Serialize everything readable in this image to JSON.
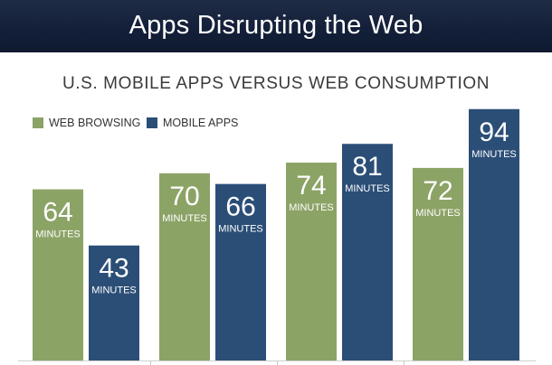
{
  "banner": {
    "title": "Apps Disrupting the Web"
  },
  "legend": [
    {
      "label": "WEB BROWSING",
      "color": "#8ca366"
    },
    {
      "label": "MOBILE APPS",
      "color": "#2b4e77"
    }
  ],
  "chart_data": {
    "type": "bar",
    "title": "U.S. MOBILE APPS VERSUS WEB CONSUMPTION",
    "xlabel": "",
    "ylabel": "",
    "categories": [
      "",
      "",
      "",
      ""
    ],
    "unit_label": "MINUTES",
    "ylim": [
      0,
      100
    ],
    "grid": false,
    "legend_position": "top-left",
    "series": [
      {
        "name": "WEB BROWSING",
        "color": "#8ca366",
        "values": [
          64,
          70,
          74,
          72
        ]
      },
      {
        "name": "MOBILE APPS",
        "color": "#2b4e77",
        "values": [
          43,
          66,
          81,
          94
        ]
      }
    ]
  }
}
